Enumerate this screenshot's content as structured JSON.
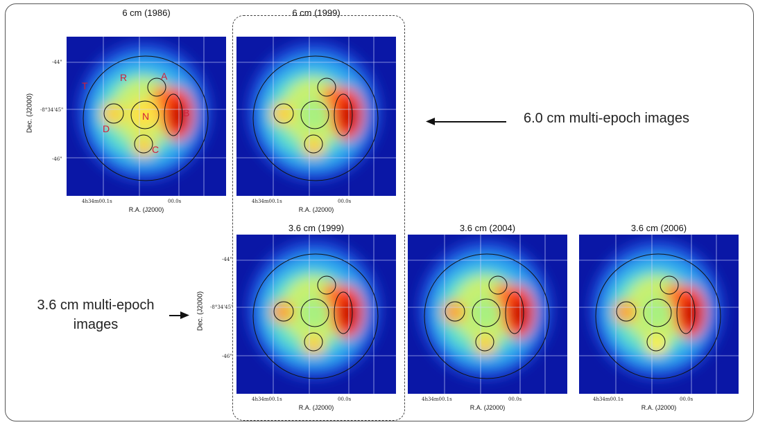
{
  "annotations": {
    "six_cm_note": "6.0 cm multi-epoch images",
    "three_six_cm_note_line1": "3.6 cm multi-epoch",
    "three_six_cm_note_line2": "images"
  },
  "axes": {
    "xlabel": "R.A. (J2000)",
    "ylabel": "Dec. (J2000)",
    "x_tick_left": "4h34m00.1s",
    "x_tick_right": "00.0s",
    "y_tick_top": "-44\"",
    "y_tick_mid": "-8°34'45\"",
    "y_tick_bottom": "-46\""
  },
  "panels": [
    {
      "title": "6 cm (1986)"
    },
    {
      "title": "6 cm (1999)"
    },
    {
      "title": "3.6 cm (1999)"
    },
    {
      "title": "3.6 cm (2004)"
    },
    {
      "title": "3.6 cm (2006)"
    }
  ],
  "region_labels": {
    "A": "A",
    "B": "B",
    "C": "C",
    "D": "D",
    "N": "N",
    "R": "R",
    "T": "T"
  },
  "colors": {
    "background_colormap": "jet",
    "label_red": "#d0203a"
  }
}
